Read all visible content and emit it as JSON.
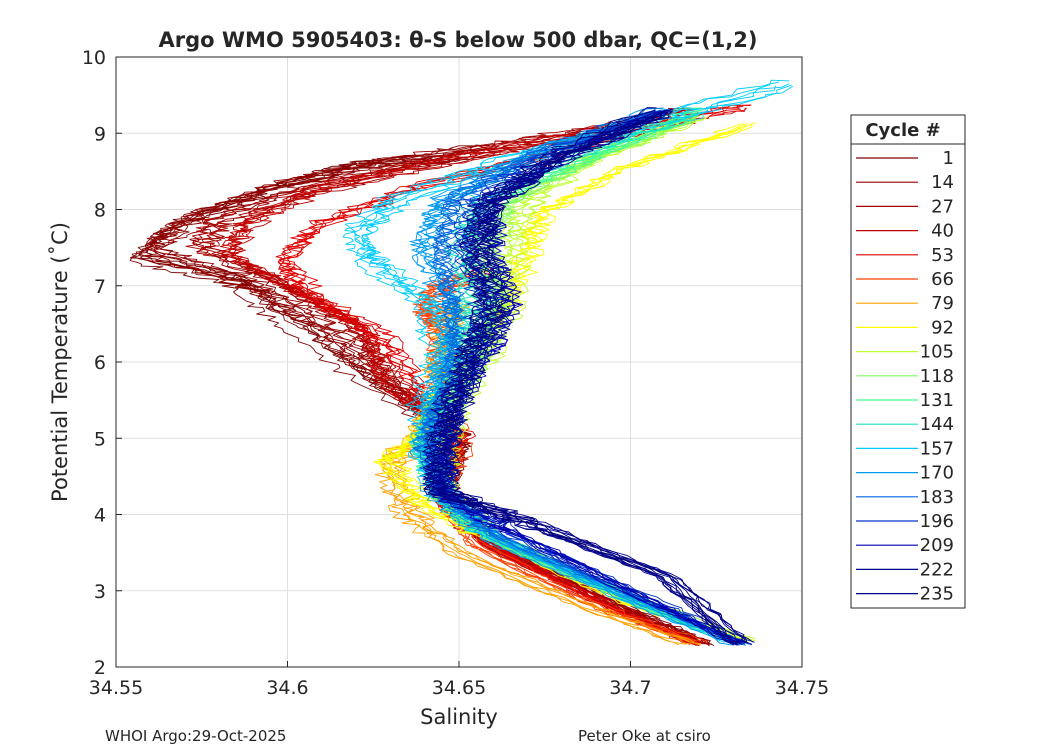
{
  "chart_data": {
    "type": "line",
    "title": "Argo WMO 5905403: θ-S below 500 dbar,  QC=(1,2)",
    "xlabel": "Salinity",
    "ylabel": "Potential Temperature (˚C)",
    "xlim": [
      34.55,
      34.75
    ],
    "ylim": [
      2,
      10
    ],
    "xticks": [
      34.55,
      34.6,
      34.65,
      34.7,
      34.75
    ],
    "xtick_labels": [
      "34.55",
      "34.6",
      "34.65",
      "34.7",
      "34.75"
    ],
    "yticks": [
      2,
      3,
      4,
      5,
      6,
      7,
      8,
      9,
      10
    ],
    "ytick_labels": [
      "2",
      "3",
      "4",
      "5",
      "6",
      "7",
      "8",
      "9",
      "10"
    ],
    "grid": true,
    "legend": {
      "title": "Cycle #",
      "position": "right-outside",
      "entries": [
        {
          "label": "1",
          "color": "#7f0000"
        },
        {
          "label": "14",
          "color": "#920000"
        },
        {
          "label": "27",
          "color": "#a50000"
        },
        {
          "label": "40",
          "color": "#c00000"
        },
        {
          "label": "53",
          "color": "#e00000"
        },
        {
          "label": "66",
          "color": "#ff4000"
        },
        {
          "label": "79",
          "color": "#ffa000"
        },
        {
          "label": "92",
          "color": "#ffff00"
        },
        {
          "label": "105",
          "color": "#c0ff30"
        },
        {
          "label": "118",
          "color": "#80ff60"
        },
        {
          "label": "131",
          "color": "#40ff90"
        },
        {
          "label": "144",
          "color": "#20e0c0"
        },
        {
          "label": "157",
          "color": "#00ccff"
        },
        {
          "label": "170",
          "color": "#0099ee"
        },
        {
          "label": "183",
          "color": "#0066dd"
        },
        {
          "label": "196",
          "color": "#0033cc"
        },
        {
          "label": "209",
          "color": "#0000b0"
        },
        {
          "label": "222",
          "color": "#000090"
        },
        {
          "label": "235",
          "color": "#00007f"
        }
      ]
    },
    "series": [
      {
        "name": "1",
        "color": "#7f0000",
        "s": [
          34.722,
          34.7,
          34.66,
          34.645,
          34.65,
          34.62,
          34.6,
          34.585,
          34.555,
          34.57,
          34.6,
          34.62,
          34.65
        ],
        "t": [
          2.3,
          2.7,
          3.6,
          4.3,
          5.0,
          5.9,
          6.6,
          7.1,
          7.4,
          7.9,
          8.35,
          8.6,
          8.7
        ]
      },
      {
        "name": "14",
        "color": "#920000",
        "s": [
          34.721,
          34.7,
          34.66,
          34.645,
          34.65,
          34.625,
          34.61,
          34.59,
          34.56,
          34.575,
          34.6,
          34.63,
          34.66
        ],
        "t": [
          2.32,
          2.75,
          3.6,
          4.3,
          5.0,
          5.9,
          6.5,
          7.0,
          7.45,
          7.9,
          8.3,
          8.6,
          8.8
        ]
      },
      {
        "name": "27",
        "color": "#a50000",
        "s": [
          34.722,
          34.7,
          34.66,
          34.645,
          34.65,
          34.63,
          34.62,
          34.6,
          34.575,
          34.58,
          34.61,
          34.64,
          34.67,
          34.7
        ],
        "t": [
          2.3,
          2.72,
          3.6,
          4.3,
          5.0,
          5.8,
          6.5,
          7.0,
          7.5,
          7.85,
          8.3,
          8.6,
          8.9,
          9.1
        ]
      },
      {
        "name": "40",
        "color": "#c00000",
        "s": [
          34.72,
          34.7,
          34.66,
          34.645,
          34.65,
          34.63,
          34.625,
          34.605,
          34.585,
          34.59,
          34.61,
          34.65,
          34.69,
          34.72
        ],
        "t": [
          2.3,
          2.7,
          3.6,
          4.3,
          5.0,
          5.7,
          6.4,
          6.9,
          7.4,
          7.8,
          8.25,
          8.65,
          9.0,
          9.3
        ]
      },
      {
        "name": "53",
        "color": "#e00000",
        "s": [
          34.72,
          34.7,
          34.66,
          34.645,
          34.652,
          34.64,
          34.63,
          34.61,
          34.6,
          34.61,
          34.64,
          34.68,
          34.71,
          34.735
        ],
        "t": [
          2.3,
          2.68,
          3.6,
          4.3,
          5.0,
          5.6,
          6.3,
          6.8,
          7.3,
          7.8,
          8.3,
          8.75,
          9.1,
          9.35
        ]
      },
      {
        "name": "66",
        "color": "#ff4000",
        "s": [
          34.72,
          34.69,
          34.655,
          34.645,
          34.65,
          34.645,
          34.645,
          34.64,
          34.645,
          34.66
        ],
        "t": [
          2.32,
          2.8,
          3.6,
          4.3,
          5.0,
          5.7,
          6.4,
          6.7,
          7.0,
          7.2
        ]
      },
      {
        "name": "79",
        "color": "#ffa000",
        "s": [
          34.718,
          34.69,
          34.65,
          34.635,
          34.63,
          34.64,
          34.645,
          34.645,
          34.65
        ],
        "t": [
          2.3,
          2.75,
          3.5,
          4.05,
          4.7,
          5.1,
          5.6,
          6.2,
          6.8
        ]
      },
      {
        "name": "92",
        "color": "#ffff00",
        "s": [
          34.735,
          34.7,
          34.66,
          34.64,
          34.63,
          34.64,
          34.645,
          34.655,
          34.665,
          34.67,
          34.675,
          34.7,
          34.735
        ],
        "t": [
          2.35,
          2.85,
          3.7,
          4.2,
          4.75,
          5.1,
          5.6,
          6.2,
          6.8,
          7.4,
          8.0,
          8.6,
          9.15
        ]
      },
      {
        "name": "105",
        "color": "#c0ff30",
        "s": [
          34.733,
          34.7,
          34.66,
          34.645,
          34.645,
          34.65,
          34.66,
          34.665,
          34.665,
          34.67,
          34.69,
          34.72
        ],
        "t": [
          2.35,
          2.9,
          3.7,
          4.3,
          4.9,
          5.5,
          6.2,
          6.8,
          7.5,
          8.1,
          8.7,
          9.2
        ]
      },
      {
        "name": "118",
        "color": "#80ff60",
        "s": [
          34.732,
          34.7,
          34.66,
          34.645,
          34.645,
          34.65,
          34.658,
          34.662,
          34.66,
          34.665,
          34.69,
          34.72
        ],
        "t": [
          2.35,
          2.9,
          3.7,
          4.3,
          4.9,
          5.5,
          6.2,
          6.8,
          7.5,
          8.1,
          8.7,
          9.25
        ]
      },
      {
        "name": "131",
        "color": "#40ff90",
        "s": [
          34.73,
          34.7,
          34.66,
          34.645,
          34.64,
          34.645,
          34.655,
          34.658,
          34.655,
          34.66,
          34.69,
          34.72
        ],
        "t": [
          2.35,
          2.9,
          3.7,
          4.3,
          4.9,
          5.5,
          6.2,
          6.8,
          7.5,
          8.1,
          8.7,
          9.3
        ]
      },
      {
        "name": "144",
        "color": "#20e0c0",
        "s": [
          34.73,
          34.7,
          34.66,
          34.645,
          34.64,
          34.645,
          34.65,
          34.652,
          34.65,
          34.655,
          34.68,
          34.72
        ],
        "t": [
          2.35,
          2.9,
          3.7,
          4.3,
          4.9,
          5.5,
          6.2,
          6.8,
          7.5,
          8.1,
          8.7,
          9.3
        ]
      },
      {
        "name": "157",
        "color": "#00ccff",
        "s": [
          34.73,
          34.7,
          34.66,
          34.645,
          34.64,
          34.64,
          34.645,
          34.64,
          34.625,
          34.62,
          34.63,
          34.66,
          34.7,
          34.745
        ],
        "t": [
          2.35,
          2.9,
          3.7,
          4.3,
          4.9,
          5.5,
          6.2,
          6.8,
          7.3,
          7.7,
          8.1,
          8.6,
          9.1,
          9.65
        ]
      },
      {
        "name": "170",
        "color": "#0099ee",
        "s": [
          34.732,
          34.7,
          34.66,
          34.645,
          34.64,
          34.643,
          34.648,
          34.648,
          34.64,
          34.645,
          34.67,
          34.71
        ],
        "t": [
          2.3,
          2.9,
          3.7,
          4.3,
          4.9,
          5.5,
          6.2,
          6.8,
          7.5,
          8.1,
          8.7,
          9.3
        ]
      },
      {
        "name": "183",
        "color": "#0066dd",
        "s": [
          34.733,
          34.7,
          34.66,
          34.645,
          34.64,
          34.645,
          34.65,
          34.648,
          34.645,
          34.648,
          34.67,
          34.71
        ],
        "t": [
          2.3,
          2.95,
          3.75,
          4.3,
          4.9,
          5.5,
          6.2,
          6.8,
          7.5,
          8.1,
          8.7,
          9.3
        ]
      },
      {
        "name": "196",
        "color": "#0033cc",
        "s": [
          34.733,
          34.7,
          34.665,
          34.645,
          34.645,
          34.648,
          34.655,
          34.658,
          34.652,
          34.655,
          34.675,
          34.71
        ],
        "t": [
          2.3,
          3.0,
          3.75,
          4.3,
          4.9,
          5.5,
          6.2,
          6.8,
          7.5,
          8.1,
          8.7,
          9.3
        ]
      },
      {
        "name": "209",
        "color": "#0000b0",
        "s": [
          34.732,
          34.7,
          34.665,
          34.645,
          34.645,
          34.65,
          34.66,
          34.665,
          34.66,
          34.66,
          34.68,
          34.71
        ],
        "t": [
          2.3,
          3.0,
          3.8,
          4.3,
          4.9,
          5.5,
          6.2,
          6.8,
          7.5,
          8.1,
          8.7,
          9.3
        ]
      },
      {
        "name": "222",
        "color": "#000090",
        "s": [
          34.733,
          34.71,
          34.67,
          34.645,
          34.645,
          34.648,
          34.655,
          34.66,
          34.655,
          34.658,
          34.68,
          34.71
        ],
        "t": [
          2.3,
          3.2,
          3.9,
          4.3,
          4.9,
          5.5,
          6.2,
          6.8,
          7.5,
          8.1,
          8.7,
          9.3
        ]
      },
      {
        "name": "235",
        "color": "#00007f",
        "s": [
          34.732,
          34.71,
          34.67,
          34.645,
          34.645,
          34.65,
          34.655,
          34.66,
          34.655,
          34.66,
          34.68,
          34.71
        ],
        "t": [
          2.3,
          3.2,
          3.9,
          4.3,
          4.9,
          5.5,
          6.2,
          6.8,
          7.5,
          8.1,
          8.7,
          9.3
        ]
      }
    ]
  },
  "footer": {
    "left": "WHOI Argo:29-Oct-2025",
    "right": "Peter Oke at csiro"
  }
}
